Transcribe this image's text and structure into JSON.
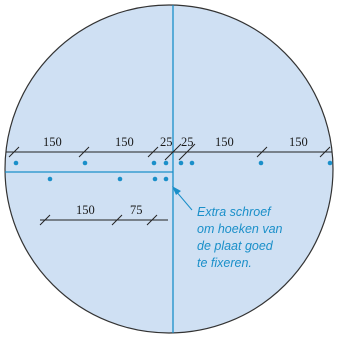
{
  "colors": {
    "circle_fill": "#cfe0f3",
    "circle_stroke": "#333333",
    "accent": "#1a8fc9",
    "line": "#222222",
    "dot": "#1a8fc9"
  },
  "dimensions": {
    "top_row": [
      "150",
      "150",
      "25",
      "25",
      "150",
      "150"
    ],
    "bottom_row": [
      "150",
      "75"
    ]
  },
  "annotation": {
    "lines": [
      "Extra schroef",
      "om hoeken van",
      "de plaat goed",
      "te fixeren."
    ]
  }
}
